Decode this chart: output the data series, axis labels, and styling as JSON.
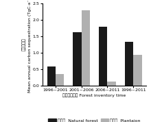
{
  "categories": [
    "1996~2001",
    "2001~2006",
    "2006~2011",
    "1996~2011"
  ],
  "natural_forest": [
    0.57,
    1.63,
    1.8,
    1.33
  ],
  "plantation": [
    0.35,
    2.3,
    0.12,
    0.94
  ],
  "bar_color_natural": "#1a1a1a",
  "bar_color_plantation": "#b0b0b0",
  "ylabel_line1": "年均固碳量",
  "ylabel_line2": "Mean annual carbon sequestration (TgC·a⁻¹)",
  "xlabel_line1": "森林调查时间 Forest inventory time",
  "legend_natural": "天然林  Natural forest",
  "legend_plantation": "人工林  Plantaion",
  "ylim": [
    0,
    2.5
  ],
  "yticks": [
    0.0,
    0.5,
    1.0,
    1.5,
    2.0,
    2.5
  ],
  "bar_width": 0.32,
  "tick_fontsize": 4.5,
  "label_fontsize": 4.5,
  "legend_fontsize": 4.5
}
